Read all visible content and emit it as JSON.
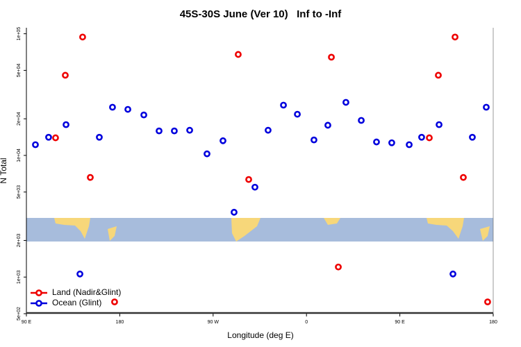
{
  "chart_data": {
    "type": "scatter",
    "title": "45S-30S June (Ver 10)   Inf to -Inf",
    "x_label": "Longitude (deg E)",
    "y_label": "N Total",
    "log_y": true,
    "legend_position": "bottom left",
    "xlim": [
      90,
      540
    ],
    "xticks": [
      {
        "value": 90,
        "label": "90 E"
      },
      {
        "value": 180,
        "label": "180"
      },
      {
        "value": 270,
        "label": "90 W"
      },
      {
        "value": 360,
        "label": "0"
      },
      {
        "value": 450,
        "label": "90 E"
      },
      {
        "value": 540,
        "label": "180"
      }
    ],
    "ylim": [
      500,
      112000
    ],
    "yticks": [
      {
        "value": 500,
        "label": "5e+02"
      },
      {
        "value": 1000,
        "label": "1e+03"
      },
      {
        "value": 2000,
        "label": "2e+03"
      },
      {
        "value": 5000,
        "label": "5e+03"
      },
      {
        "value": 10000,
        "label": "1e+04"
      },
      {
        "value": 20000,
        "label": "2e+04"
      },
      {
        "value": 50000,
        "label": "5e+04"
      },
      {
        "value": 100000,
        "label": "1e+05"
      }
    ],
    "series": [
      {
        "name": "Land (Nadir&Glint)",
        "color": "#ee0000",
        "x": [
          118.1,
          127.5,
          144.2,
          151.6,
          175,
          294.2,
          304.3,
          384,
          390.7,
          478.4,
          487.1,
          503.2,
          511.2,
          534.6
        ],
        "values": [
          13950,
          45600,
          94000,
          6590,
          625,
          67600,
          6340,
          64200,
          1210,
          13950,
          45600,
          94000,
          6590,
          625
        ]
      },
      {
        "name": "Ocean (Glint)",
        "color": "#0000dd",
        "x": [
          98.7,
          111.4,
          128.2,
          141.6,
          160.3,
          173,
          187.8,
          203.2,
          217.9,
          232.6,
          247.4,
          264.1,
          279.5,
          290.2,
          310.3,
          323,
          337.8,
          351.2,
          367.2,
          380.6,
          398,
          412.8,
          427.5,
          442.2,
          459,
          471,
          487.8,
          501.2,
          519.9,
          533.3
        ],
        "values": [
          12250,
          14100,
          17900,
          1060,
          14100,
          24900,
          23900,
          21500,
          15900,
          15900,
          16100,
          10300,
          13200,
          3410,
          5480,
          16100,
          25900,
          21800,
          13400,
          17700,
          27300,
          19400,
          12900,
          12700,
          12250,
          14100,
          17900,
          1060,
          14100,
          24900
        ]
      }
    ]
  }
}
